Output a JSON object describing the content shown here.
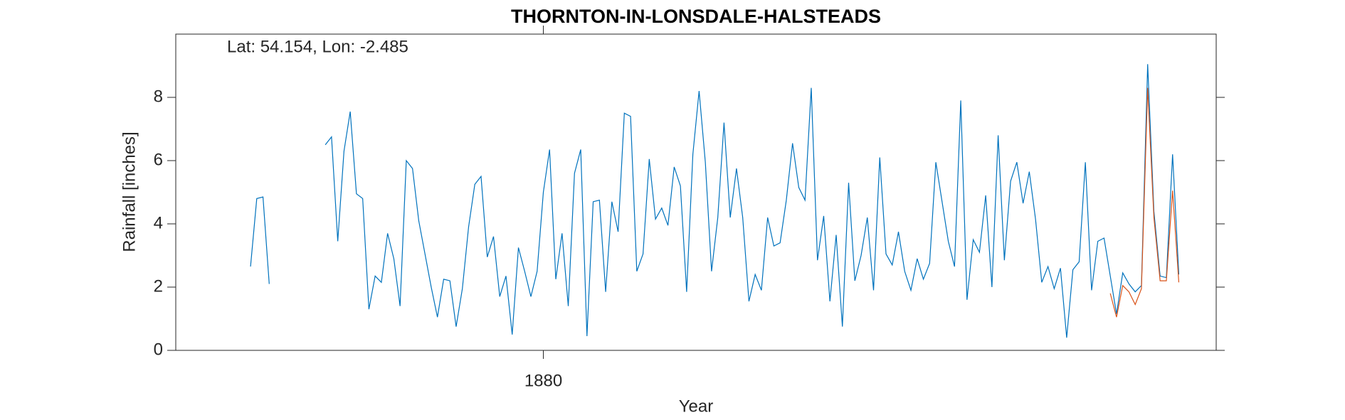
{
  "chart_data": {
    "type": "line",
    "title": "THORNTON-IN-LONSDALE-HALSTEADS",
    "annotation": "Lat: 54.154, Lon: -2.485",
    "xlabel": "Year",
    "ylabel": "Rainfall [inches]",
    "xlim": [
      1821,
      1988
    ],
    "xticks": [
      1880
    ],
    "ylim": [
      0,
      10
    ],
    "yticks": [
      0,
      2,
      4,
      6,
      8
    ],
    "grid": false,
    "x": [
      1833,
      1834,
      1835,
      1836,
      1837,
      1838,
      1839,
      1840,
      1841,
      1842,
      1843,
      1844,
      1845,
      1846,
      1847,
      1848,
      1849,
      1850,
      1851,
      1852,
      1853,
      1854,
      1855,
      1856,
      1857,
      1858,
      1859,
      1860,
      1861,
      1862,
      1863,
      1864,
      1865,
      1866,
      1867,
      1868,
      1869,
      1870,
      1871,
      1872,
      1873,
      1874,
      1875,
      1876,
      1877,
      1878,
      1879,
      1880,
      1881,
      1882,
      1883,
      1884,
      1885,
      1886,
      1887,
      1888,
      1889,
      1890,
      1891,
      1892,
      1893,
      1894,
      1895,
      1896,
      1897,
      1898,
      1899,
      1900,
      1901,
      1902,
      1903,
      1904,
      1905,
      1906,
      1907,
      1908,
      1909,
      1910,
      1911,
      1912,
      1913,
      1914,
      1915,
      1916,
      1917,
      1918,
      1919,
      1920,
      1921,
      1922,
      1923,
      1924,
      1925,
      1926,
      1927,
      1928,
      1929,
      1930,
      1931,
      1932,
      1933,
      1934,
      1935,
      1936,
      1937,
      1938,
      1939,
      1940,
      1941,
      1942,
      1943,
      1944,
      1945,
      1946,
      1947,
      1948,
      1949,
      1950,
      1951,
      1952,
      1953,
      1954,
      1955,
      1956,
      1957,
      1958,
      1959,
      1960,
      1961,
      1962,
      1963,
      1964,
      1965,
      1966,
      1967,
      1968,
      1969,
      1970,
      1971,
      1972,
      1973,
      1974,
      1975,
      1976,
      1977,
      1978,
      1979,
      1980,
      1981,
      1982
    ],
    "series": [
      {
        "color": "#0072bd",
        "values": [
          2.65,
          4.8,
          4.85,
          2.1,
          null,
          null,
          null,
          null,
          null,
          null,
          null,
          null,
          6.5,
          6.75,
          3.45,
          6.3,
          7.55,
          4.95,
          4.8,
          1.3,
          2.35,
          2.15,
          3.7,
          2.9,
          1.4,
          6.0,
          5.75,
          4.1,
          3.05,
          2.0,
          1.05,
          2.25,
          2.2,
          0.75,
          1.95,
          3.9,
          5.25,
          5.5,
          2.95,
          3.6,
          1.7,
          2.35,
          0.5,
          3.25,
          2.5,
          1.7,
          2.5,
          5.0,
          6.35,
          2.25,
          3.7,
          1.4,
          5.6,
          6.35,
          0.45,
          4.7,
          4.75,
          1.85,
          4.7,
          3.75,
          7.5,
          7.4,
          2.5,
          3.05,
          6.05,
          4.15,
          4.5,
          3.95,
          5.8,
          5.2,
          1.85,
          6.2,
          8.2,
          5.95,
          2.5,
          4.2,
          7.2,
          4.2,
          5.75,
          4.2,
          1.55,
          2.4,
          1.9,
          4.2,
          3.3,
          3.4,
          4.75,
          6.55,
          5.15,
          4.75,
          8.3,
          2.85,
          4.25,
          1.55,
          3.65,
          0.75,
          5.3,
          2.2,
          3.0,
          4.2,
          1.9,
          6.1,
          3.05,
          2.7,
          3.75,
          2.5,
          1.9,
          2.9,
          2.25,
          2.75,
          5.95,
          4.7,
          3.45,
          2.65,
          7.9,
          1.6,
          3.5,
          3.1,
          4.9,
          2.0,
          6.8,
          2.85,
          5.35,
          5.95,
          4.65,
          5.65,
          4.15,
          2.15,
          2.65,
          1.95,
          2.6,
          0.4,
          2.55,
          2.8,
          5.95,
          1.9,
          3.45,
          3.55,
          2.35,
          1.15,
          2.45,
          2.1,
          1.85,
          2.05,
          9.05,
          4.4,
          2.35,
          2.3,
          6.2,
          2.4
        ]
      },
      {
        "color": "#d95319",
        "values": [
          null,
          null,
          null,
          null,
          null,
          null,
          null,
          null,
          null,
          null,
          null,
          null,
          null,
          null,
          null,
          null,
          null,
          null,
          null,
          null,
          null,
          null,
          null,
          null,
          null,
          null,
          null,
          null,
          null,
          null,
          null,
          null,
          null,
          null,
          null,
          null,
          null,
          null,
          null,
          null,
          null,
          null,
          null,
          null,
          null,
          null,
          null,
          null,
          null,
          null,
          null,
          null,
          null,
          null,
          null,
          null,
          null,
          null,
          null,
          null,
          null,
          null,
          null,
          null,
          null,
          null,
          null,
          null,
          null,
          null,
          null,
          null,
          null,
          null,
          null,
          null,
          null,
          null,
          null,
          null,
          null,
          null,
          null,
          null,
          null,
          null,
          null,
          null,
          null,
          null,
          null,
          null,
          null,
          null,
          null,
          null,
          null,
          null,
          null,
          null,
          null,
          null,
          null,
          null,
          null,
          null,
          null,
          null,
          null,
          null,
          null,
          null,
          null,
          null,
          null,
          null,
          null,
          null,
          null,
          null,
          null,
          null,
          null,
          null,
          null,
          null,
          null,
          null,
          null,
          null,
          null,
          null,
          null,
          null,
          null,
          null,
          null,
          null,
          1.8,
          1.05,
          2.05,
          1.85,
          1.45,
          1.95,
          8.3,
          4.2,
          2.2,
          2.2,
          5.05,
          2.15
        ]
      }
    ]
  }
}
